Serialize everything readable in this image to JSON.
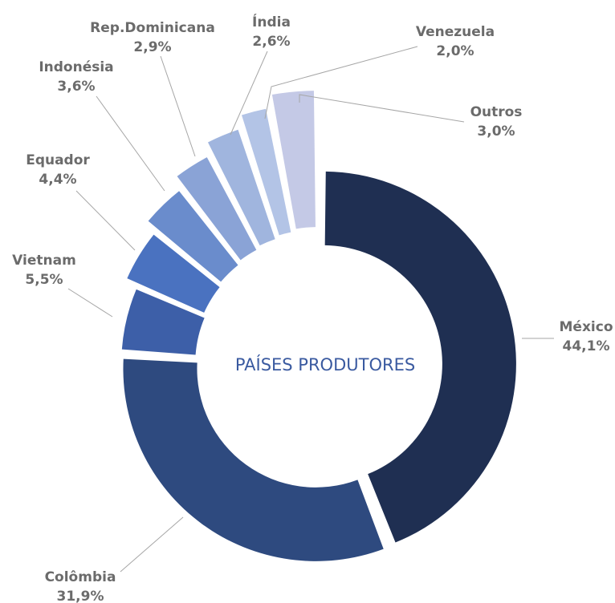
{
  "chart_data": {
    "type": "donut",
    "center_label": "PAÍSES PRODUTORES",
    "categories": [
      "México",
      "Colômbia",
      "Vietnam",
      "Equador",
      "Indonésia",
      "Rep.Dominicana",
      "Índia",
      "Venezuela",
      "Outros"
    ],
    "values": [
      44.1,
      31.9,
      5.5,
      4.4,
      3.6,
      2.9,
      2.6,
      2.0,
      3.0
    ],
    "value_labels": [
      "44,1%",
      "31,9%",
      "5,5%",
      "4,4%",
      "3,6%",
      "2,9%",
      "2,6%",
      "2,0%",
      "3,0%"
    ],
    "colors": [
      "#1f2f52",
      "#2e4a7f",
      "#3d5fa8",
      "#4a72c0",
      "#6a8ccc",
      "#8aa3d6",
      "#a0b5de",
      "#b3c4e6",
      "#c4c9e6"
    ]
  }
}
